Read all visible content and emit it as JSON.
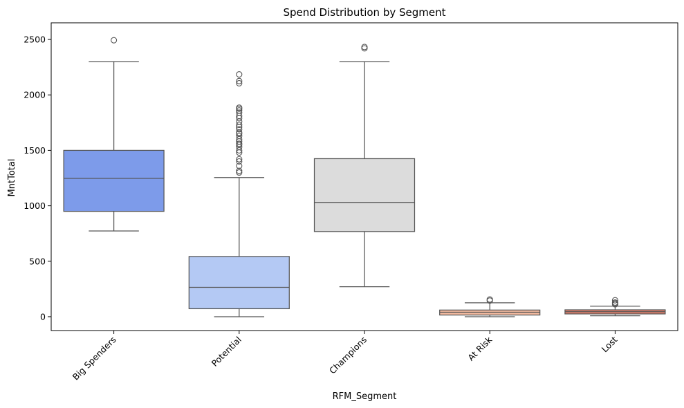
{
  "chart_data": {
    "type": "box",
    "title": "Spend Distribution by Segment",
    "xlabel": "RFM_Segment",
    "ylabel": "MntTotal",
    "ylim": [
      -125,
      2650
    ],
    "yticks": [
      0,
      500,
      1000,
      1500,
      2000,
      2500
    ],
    "grid": false,
    "categories": [
      "Big Spenders",
      "Potential",
      "Champions",
      "At Risk",
      "Lost"
    ],
    "colors": [
      "#7d9bea",
      "#b4c9f4",
      "#dcdcdc",
      "#f3baa0",
      "#e0806c"
    ],
    "edge_color": "#555555",
    "boxes": [
      {
        "category": "Big Spenders",
        "whisker_low": 773,
        "q1": 950,
        "median": 1248,
        "q3": 1500,
        "whisker_high": 2300,
        "outliers": [
          2493
        ]
      },
      {
        "category": "Potential",
        "whisker_low": 0,
        "q1": 72,
        "median": 265,
        "q3": 543,
        "whisker_high": 1255,
        "outliers": [
          1300,
          1315,
          1360,
          1400,
          1420,
          1480,
          1500,
          1530,
          1550,
          1560,
          1580,
          1600,
          1630,
          1650,
          1660,
          1690,
          1710,
          1730,
          1760,
          1790,
          1810,
          1840,
          1860,
          1875,
          1885,
          2105,
          2125,
          2185
        ]
      },
      {
        "category": "Champions",
        "whisker_low": 270,
        "q1": 768,
        "median": 1030,
        "q3": 1425,
        "whisker_high": 2300,
        "outliers": [
          2420,
          2432
        ]
      },
      {
        "category": "At Risk",
        "whisker_low": 0,
        "q1": 15,
        "median": 40,
        "q3": 60,
        "whisker_high": 125,
        "outliers": [
          145,
          155
        ]
      },
      {
        "category": "Lost",
        "whisker_low": 8,
        "q1": 25,
        "median": 45,
        "q3": 62,
        "whisker_high": 95,
        "outliers": [
          112,
          120,
          128,
          148
        ]
      }
    ]
  }
}
